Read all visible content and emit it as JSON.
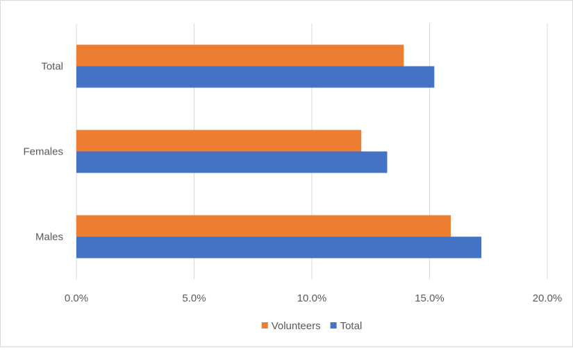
{
  "chart_data": {
    "type": "bar",
    "orientation": "horizontal",
    "categories": [
      "Total",
      "Females",
      "Males"
    ],
    "series": [
      {
        "name": "Volunteers",
        "values": [
          0.139,
          0.121,
          0.159
        ],
        "color": "#ed7d31"
      },
      {
        "name": "Total",
        "values": [
          0.152,
          0.132,
          0.172
        ],
        "color": "#4472c4"
      }
    ],
    "xlim": [
      0,
      0.2
    ],
    "xticks": [
      0,
      0.05,
      0.1,
      0.15,
      0.2
    ],
    "xtick_labels": [
      "0.0%",
      "5.0%",
      "10.0%",
      "15.0%",
      "20.0%"
    ],
    "grid": "vertical",
    "legend": "bottom",
    "title": "",
    "xlabel": "",
    "ylabel": ""
  }
}
